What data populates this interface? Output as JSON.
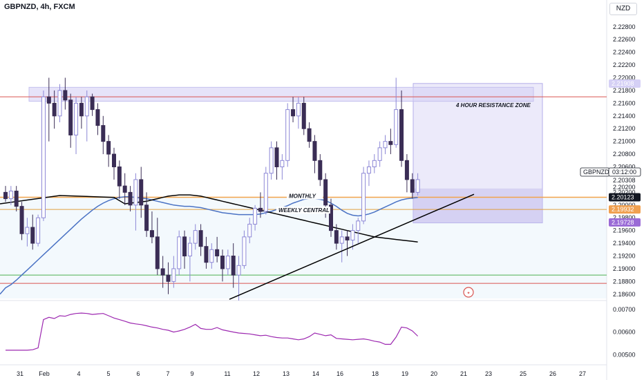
{
  "header": {
    "title": "GBPNZD, 4h, FXCM",
    "currency": "NZD"
  },
  "colors": {
    "candle_up_fill": "#ffffff",
    "candle_up_border": "#8c87d6",
    "candle_down": "#3a2d55",
    "ma_blue": "#4a72c4",
    "ma_black": "#000000",
    "zone_fill": "#d5d0f5",
    "monthly_line": "#f2a34a",
    "weekly_line": "#e0a040",
    "red_line": "#d9534f",
    "green_line": "#4caf50",
    "indicator": "#9c27b0"
  },
  "chart_data": [
    {
      "type": "candlestick",
      "title": "GBPNZD, 4h, FXCM",
      "ylim": [
        2.185,
        2.2295
      ],
      "y_ticks": [
        "2.22800",
        "2.22600",
        "2.22400",
        "2.22200",
        "2.22000",
        "2.21800",
        "2.21600",
        "2.21400",
        "2.21200",
        "2.21000",
        "2.20800",
        "2.20600",
        "2.20200",
        "2.20000",
        "2.19800",
        "2.19600",
        "2.19400",
        "2.19200",
        "2.19000",
        "2.18800",
        "2.18600"
      ],
      "x_ticks": [
        "31",
        "Feb",
        "4",
        "5",
        "6",
        "7",
        "9",
        "11",
        "12",
        "13",
        "14",
        "16",
        "18",
        "19",
        "20",
        "21",
        "23",
        "25",
        "26",
        "27"
      ],
      "candles": [
        [
          2.202,
          2.203,
          2.2005,
          2.201
        ],
        [
          2.201,
          2.203,
          2.2,
          2.2022
        ],
        [
          2.2022,
          2.203,
          2.199,
          2.1998
        ],
        [
          2.1998,
          2.2005,
          2.1945,
          2.1955
        ],
        [
          2.1955,
          2.198,
          2.1935,
          2.1965
        ],
        [
          2.1965,
          2.1985,
          2.193,
          2.194
        ],
        [
          2.194,
          2.1985,
          2.1935,
          2.198
        ],
        [
          2.198,
          2.218,
          2.1975,
          2.217
        ],
        [
          2.217,
          2.22,
          2.21,
          2.216
        ],
        [
          2.216,
          2.218,
          2.212,
          2.214
        ],
        [
          2.214,
          2.219,
          2.213,
          2.218
        ],
        [
          2.218,
          2.22,
          2.215,
          2.2165
        ],
        [
          2.2165,
          2.2175,
          2.209,
          2.211
        ],
        [
          2.211,
          2.217,
          2.208,
          2.216
        ],
        [
          2.216,
          2.217,
          2.212,
          2.214
        ],
        [
          2.214,
          2.218,
          2.21,
          2.217
        ],
        [
          2.217,
          2.2175,
          2.214,
          2.215
        ],
        [
          2.215,
          2.216,
          2.211,
          2.2125
        ],
        [
          2.2125,
          2.214,
          2.208,
          2.21
        ],
        [
          2.21,
          2.211,
          2.206,
          2.208
        ],
        [
          2.208,
          2.209,
          2.204,
          2.206
        ],
        [
          2.206,
          2.207,
          2.201,
          2.203
        ],
        [
          2.203,
          2.205,
          2.2,
          2.202
        ],
        [
          2.202,
          2.203,
          2.199,
          2.2
        ],
        [
          2.2,
          2.205,
          2.196,
          2.204
        ],
        [
          2.204,
          2.206,
          2.198,
          2.2
        ],
        [
          2.2,
          2.202,
          2.195,
          2.196
        ],
        [
          2.196,
          2.199,
          2.194,
          2.195
        ],
        [
          2.195,
          2.198,
          2.189,
          2.19
        ],
        [
          2.19,
          2.192,
          2.187,
          2.189
        ],
        [
          2.189,
          2.191,
          2.186,
          2.188
        ],
        [
          2.188,
          2.192,
          2.187,
          2.19
        ],
        [
          2.19,
          2.196,
          2.189,
          2.195
        ],
        [
          2.195,
          2.196,
          2.19,
          2.192
        ],
        [
          2.192,
          2.195,
          2.188,
          2.194
        ],
        [
          2.194,
          2.197,
          2.193,
          2.196
        ],
        [
          2.196,
          2.197,
          2.192,
          2.1935
        ],
        [
          2.1935,
          2.195,
          2.19,
          2.191
        ],
        [
          2.191,
          2.194,
          2.19,
          2.193
        ],
        [
          2.193,
          2.195,
          2.191,
          2.192
        ],
        [
          2.192,
          2.193,
          2.188,
          2.19
        ],
        [
          2.19,
          2.193,
          2.189,
          2.192
        ],
        [
          2.192,
          2.194,
          2.187,
          2.189
        ],
        [
          2.189,
          2.192,
          2.185,
          2.1905
        ],
        [
          2.1905,
          2.196,
          2.19,
          2.195
        ],
        [
          2.195,
          2.198,
          2.194,
          2.197
        ],
        [
          2.197,
          2.2,
          2.196,
          2.1995
        ],
        [
          2.1995,
          2.202,
          2.198,
          2.199
        ],
        [
          2.199,
          2.206,
          2.1985,
          2.205
        ],
        [
          2.205,
          2.21,
          2.204,
          2.209
        ],
        [
          2.209,
          2.21,
          2.204,
          2.206
        ],
        [
          2.206,
          2.208,
          2.204,
          2.207
        ],
        [
          2.207,
          2.216,
          2.206,
          2.215
        ],
        [
          2.215,
          2.217,
          2.213,
          2.214
        ],
        [
          2.214,
          2.217,
          2.212,
          2.216
        ],
        [
          2.216,
          2.217,
          2.211,
          2.212
        ],
        [
          2.212,
          2.213,
          2.209,
          2.21
        ],
        [
          2.21,
          2.211,
          2.205,
          2.207
        ],
        [
          2.207,
          2.208,
          2.203,
          2.204
        ],
        [
          2.204,
          2.205,
          2.198,
          2.2
        ],
        [
          2.2,
          2.201,
          2.195,
          2.196
        ],
        [
          2.196,
          2.197,
          2.193,
          2.194
        ],
        [
          2.194,
          2.196,
          2.191,
          2.195
        ],
        [
          2.195,
          2.196,
          2.192,
          2.1945
        ],
        [
          2.1945,
          2.197,
          2.193,
          2.196
        ],
        [
          2.196,
          2.198,
          2.194,
          2.1975
        ],
        [
          2.1975,
          2.206,
          2.197,
          2.205
        ],
        [
          2.205,
          2.207,
          2.203,
          2.206
        ],
        [
          2.206,
          2.208,
          2.205,
          2.207
        ],
        [
          2.207,
          2.21,
          2.206,
          2.209
        ],
        [
          2.209,
          2.211,
          2.208,
          2.21
        ],
        [
          2.21,
          2.212,
          2.208,
          2.2095
        ],
        [
          2.2095,
          2.22,
          2.209,
          2.215
        ],
        [
          2.215,
          2.218,
          2.206,
          2.207
        ],
        [
          2.207,
          2.208,
          2.202,
          2.204
        ],
        [
          2.204,
          2.205,
          2.201,
          2.202
        ],
        [
          2.202,
          2.205,
          2.2015,
          2.204
        ]
      ],
      "ma_blue": [
        2.187,
        2.1875,
        2.1882,
        2.189,
        2.1898,
        2.1906,
        2.1914,
        2.1922,
        2.193,
        2.1938,
        2.1946,
        2.1954,
        2.1962,
        2.197,
        2.1978,
        2.1985,
        2.1992,
        2.1998,
        2.2003,
        2.2007,
        2.201,
        2.2012,
        2.2013,
        2.2013,
        2.2012,
        2.2011,
        2.201,
        2.2008,
        2.2006,
        2.2004,
        2.2002,
        2.2,
        2.1999,
        2.1998,
        2.1998,
        2.1997,
        2.1996,
        2.1994,
        2.1992,
        2.199,
        2.1988,
        2.1987,
        2.1986,
        2.1985,
        2.1985,
        2.1985,
        2.1985,
        2.1986,
        2.1988,
        2.199,
        2.1993,
        2.1996,
        2.1999,
        2.2003,
        2.2006,
        2.2009,
        2.201,
        2.201,
        2.2009,
        2.2007,
        2.2003,
        2.1998,
        2.1992,
        2.1987,
        2.1984,
        2.1983,
        2.1984,
        2.1986,
        2.1989,
        2.1993,
        2.1997,
        2.2001,
        2.2005,
        2.2008,
        2.201,
        2.2011,
        2.2012
      ],
      "ma_black": [
        2.2002,
        2.2003,
        2.2004,
        2.2005,
        2.2006,
        2.2008,
        2.201,
        2.2012,
        2.2014,
        2.2015,
        2.2016,
        2.2016,
        2.2016,
        2.2015,
        2.2014,
        2.2012,
        2.201,
        2.2008,
        2.2006,
        2.2004,
        2.2002,
        2.2,
        2.1998,
        2.1996,
        2.1994,
        2.1992,
        2.199,
        2.1988,
        2.1986,
        2.1984,
        2.1982,
        2.198,
        2.1978,
        2.1976,
        2.1974,
        2.1972,
        2.197,
        2.1968,
        2.1966,
        2.1964,
        2.1962,
        2.196,
        2.1958,
        2.1956,
        2.1954,
        2.1952,
        2.195,
        2.1949,
        2.1948,
        2.1947,
        2.1946,
        2.1945,
        2.1944,
        2.1943,
        2.1942
      ],
      "levels": {
        "resistance_zone": [
          2.2163,
          2.2185
        ],
        "right_zone": [
          2.1972,
          2.2191
        ],
        "monthly": 2.20123,
        "weekly_central": 2.19932,
        "red_top": 2.217,
        "green": 2.189,
        "red_bottom": 2.1877
      },
      "trendline": [
        [
          2.1852,
          2.2017
        ]
      ],
      "annotations": [
        "4 HOUR RESISTANCE ZONE",
        "MONTHLY",
        "WEEKLY CENTRAL"
      ],
      "price_tags": [
        {
          "label": "GBPNZD",
          "value": "03:12:00"
        },
        {
          "value": "2.20308"
        },
        {
          "value": "2.20200"
        },
        {
          "value": "2.21908"
        },
        {
          "value": "2.20123"
        },
        {
          "value": "2.19932"
        },
        {
          "value": "2.19728"
        }
      ]
    },
    {
      "type": "line",
      "ylim": [
        0.0048,
        0.0073
      ],
      "y_ticks": [
        "0.00700",
        "0.00600",
        "0.00500"
      ],
      "values": [
        0.0052,
        0.0052,
        0.0052,
        0.0052,
        0.0052,
        0.00522,
        0.0053,
        0.00655,
        0.00665,
        0.0066,
        0.00672,
        0.0067,
        0.00678,
        0.00682,
        0.00684,
        0.00682,
        0.00678,
        0.0068,
        0.00682,
        0.00672,
        0.00662,
        0.00655,
        0.00648,
        0.0064,
        0.00636,
        0.00633,
        0.00628,
        0.00622,
        0.00618,
        0.00612,
        0.00608,
        0.006,
        0.00605,
        0.00612,
        0.00622,
        0.00634,
        0.00616,
        0.00612,
        0.00612,
        0.0062,
        0.0061,
        0.00605,
        0.006,
        0.00596,
        0.00594,
        0.00592,
        0.00588,
        0.00584,
        0.00586,
        0.0058,
        0.00576,
        0.00574,
        0.00574,
        0.0057,
        0.00566,
        0.0057,
        0.0058,
        0.00596,
        0.0059,
        0.00584,
        0.00588,
        0.00572,
        0.0057,
        0.00568,
        0.00566,
        0.00568,
        0.0057,
        0.00566,
        0.0056,
        0.00556,
        0.00546,
        0.00546,
        0.00578,
        0.00622,
        0.00618,
        0.00605,
        0.00582
      ]
    }
  ]
}
